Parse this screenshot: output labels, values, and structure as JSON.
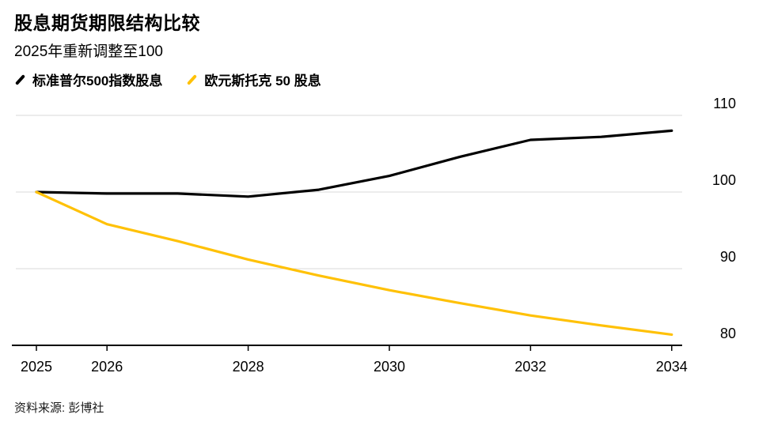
{
  "header": {
    "title": "股息期货期限结构比较",
    "subtitle": "2025年重新调整至100"
  },
  "legend": {
    "items": [
      {
        "label": "标准普尔500指数股息",
        "color": "#000000"
      },
      {
        "label": "欧元斯托克 50 股息",
        "color": "#FFC107"
      }
    ]
  },
  "chart_data": {
    "type": "line",
    "title": "股息期货期限结构比较",
    "subtitle": "2025年重新调整至100",
    "x": [
      2025,
      2026,
      2027,
      2028,
      2029,
      2030,
      2031,
      2032,
      2033,
      2034
    ],
    "series": [
      {
        "name": "标准普尔500指数股息",
        "color": "#000000",
        "values": [
          100,
          99.8,
          99.8,
          99.4,
          100.3,
          102.1,
          104.6,
          106.8,
          107.2,
          108.0
        ]
      },
      {
        "name": "欧元斯托克 50 股息",
        "color": "#FFC107",
        "values": [
          100,
          95.8,
          93.6,
          91.2,
          89.1,
          87.2,
          85.5,
          83.9,
          82.6,
          81.4
        ]
      }
    ],
    "ylim": [
      80,
      110
    ],
    "y_ticks": [
      110,
      100,
      90,
      80
    ],
    "x_tick_years": [
      2025,
      2026,
      2028,
      2030,
      2032,
      2034
    ],
    "x_tick_labels": [
      "2025",
      "2026",
      "2028",
      "2030",
      "2032",
      "2034"
    ],
    "grid": "horizontal",
    "legend_position": "top-left",
    "y_axis_side": "right"
  },
  "footer": {
    "source": "资料来源: 彭博社"
  },
  "colors": {
    "gridline": "#d9d9d9",
    "axis": "#000000",
    "background": "#ffffff"
  }
}
